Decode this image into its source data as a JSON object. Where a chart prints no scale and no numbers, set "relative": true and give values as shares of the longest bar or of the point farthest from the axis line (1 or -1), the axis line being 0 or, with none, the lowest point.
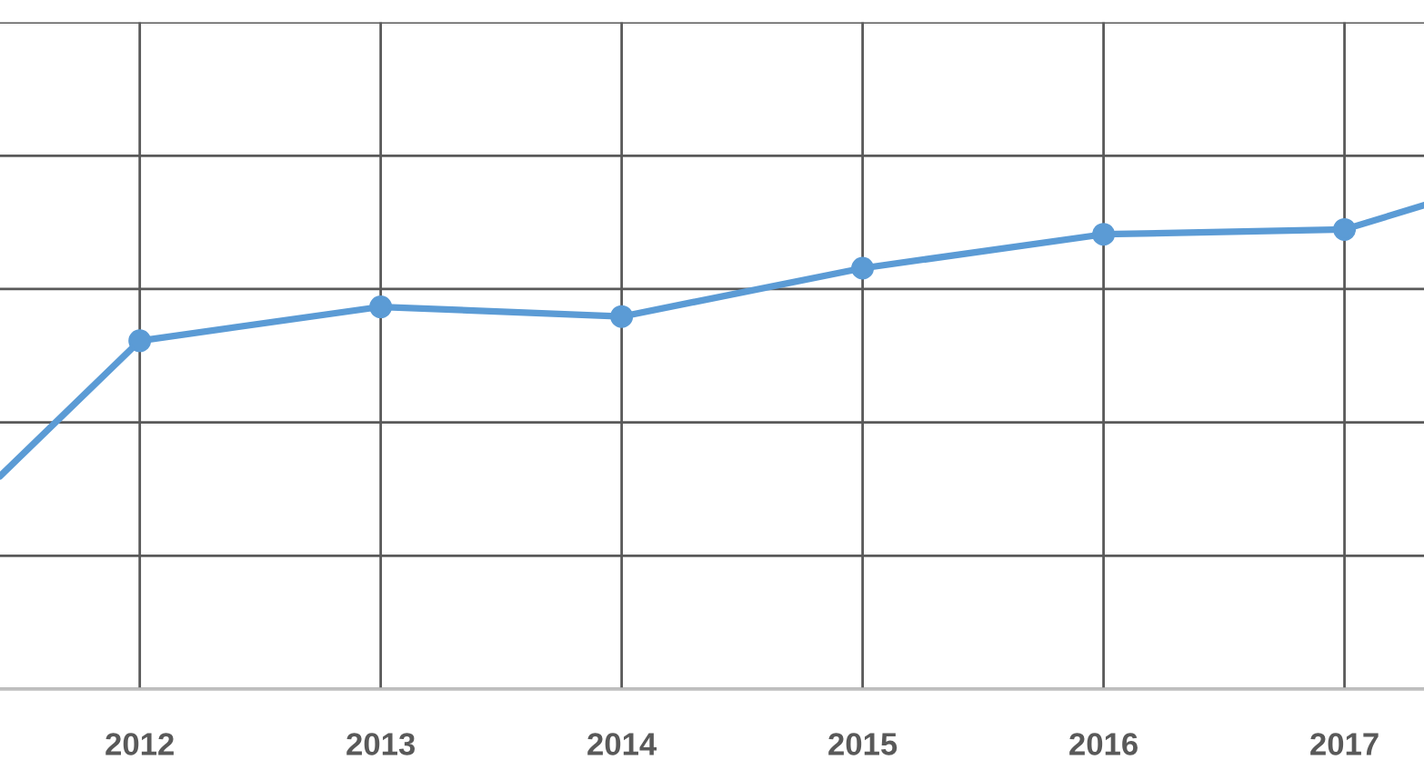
{
  "chart_data": {
    "type": "line",
    "relative": true,
    "x": [
      2011.42,
      2012,
      2013,
      2014,
      2015,
      2016,
      2017,
      2017.33
    ],
    "xlim": [
      2011.42,
      2017.33
    ],
    "xticks": [
      2012,
      2013,
      2014,
      2015,
      2016,
      2017
    ],
    "series": [
      {
        "color": "#5b9bd5",
        "values": [
          0.44,
          0.72,
          0.79,
          0.77,
          0.87,
          0.94,
          0.95,
          1
        ]
      }
    ],
    "marker": "circle",
    "line_style": "solid",
    "grid": true,
    "tick_labels": "x"
  }
}
